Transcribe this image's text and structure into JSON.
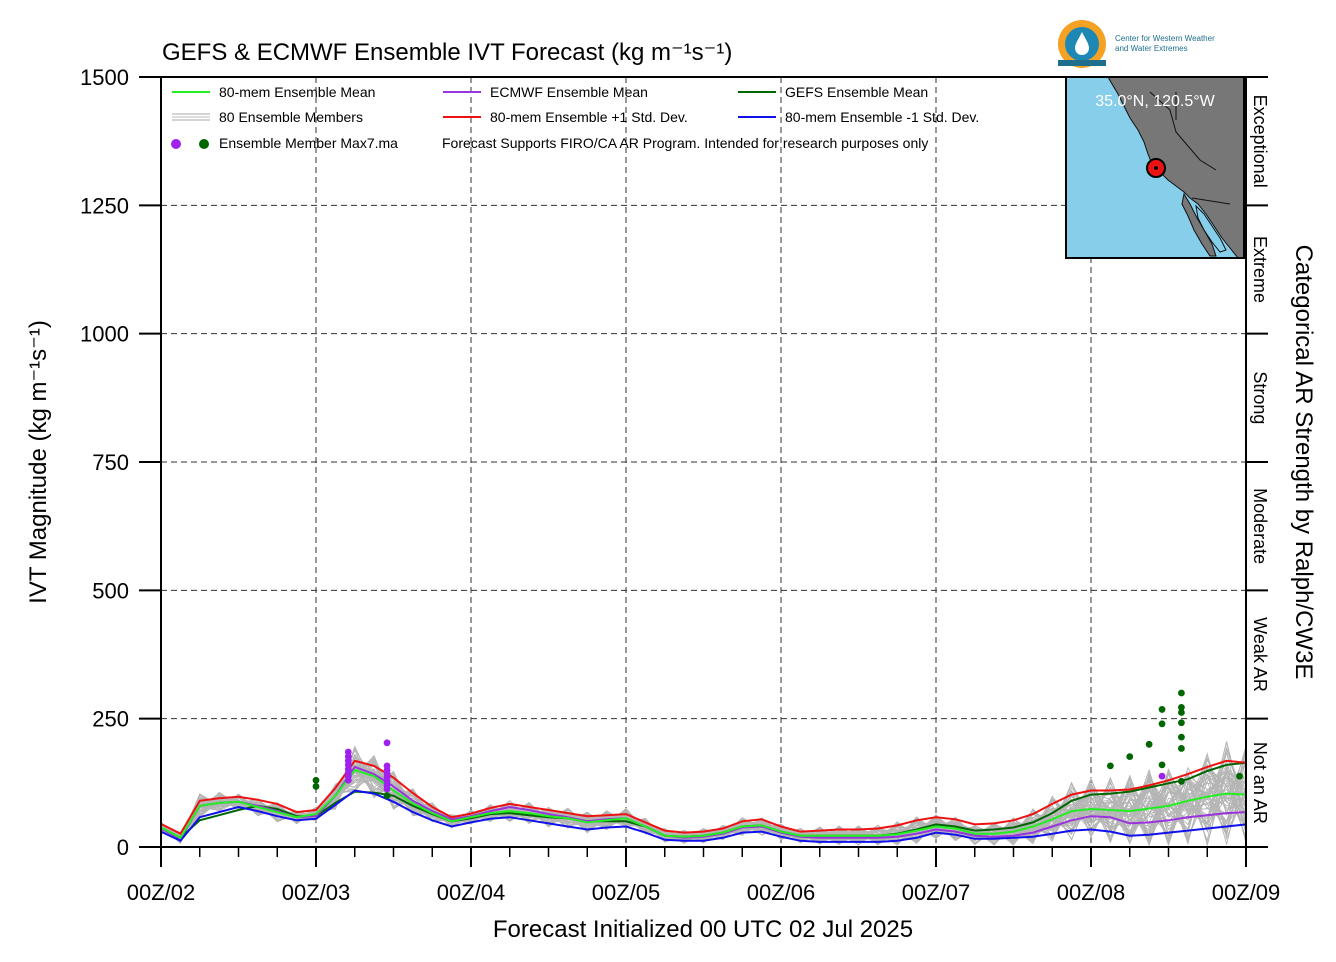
{
  "chart_data": {
    "type": "line",
    "title": "GEFS & ECMWF Ensemble IVT Forecast (kg m⁻¹s⁻¹)",
    "xlabel": "Forecast Initialized 00 UTC 02 Jul 2025",
    "ylabel": "IVT Magnitude (kg m⁻¹s⁻¹)",
    "right_label": "Categorical AR Strength by Ralph/CW3E",
    "ylim": [
      0,
      1500
    ],
    "xlim": [
      0,
      168
    ],
    "y_ticks": [
      0,
      250,
      500,
      750,
      1000,
      1250,
      1500
    ],
    "x_tick_hours": [
      0,
      24,
      48,
      72,
      96,
      120,
      144,
      168
    ],
    "x_tick_labels": [
      "00Z/02",
      "00Z/03",
      "00Z/04",
      "00Z/05",
      "00Z/06",
      "00Z/07",
      "00Z/08",
      "00Z/09"
    ],
    "grid": true,
    "categories": [
      {
        "label": "Not an AR",
        "from": 0,
        "to": 250
      },
      {
        "label": "Weak AR",
        "from": 250,
        "to": 500
      },
      {
        "label": "Moderate",
        "from": 500,
        "to": 750
      },
      {
        "label": "Strong",
        "from": 750,
        "to": 1000
      },
      {
        "label": "Extreme",
        "from": 1000,
        "to": 1250
      },
      {
        "label": "Exceptional",
        "from": 1250,
        "to": 1500
      }
    ],
    "legend": {
      "mean": "80-mem Ensemble Mean",
      "members": "80 Ensemble Members",
      "max": "Ensemble Member Max7.ma",
      "ecmwf": "ECMWF Ensemble Mean",
      "plus": "80-mem Ensemble +1 Std. Dev.",
      "note": "Forecast Supports FIRO/CA AR Program. Intended for research purposes only",
      "gefs": "GEFS Ensemble Mean",
      "minus": "80-mem Ensemble -1 Std. Dev."
    },
    "x": [
      0,
      3,
      6,
      9,
      12,
      15,
      18,
      21,
      24,
      27,
      30,
      33,
      36,
      39,
      42,
      45,
      48,
      51,
      54,
      57,
      60,
      63,
      66,
      69,
      72,
      75,
      78,
      81,
      84,
      87,
      90,
      93,
      96,
      99,
      102,
      105,
      108,
      111,
      114,
      117,
      120,
      123,
      126,
      129,
      132,
      135,
      138,
      141,
      144,
      147,
      150,
      153,
      156,
      159,
      162,
      165,
      168
    ],
    "series": [
      {
        "name": "80-mem Ensemble Mean",
        "color": "#22ee22",
        "values": [
          38,
          18,
          80,
          86,
          88,
          78,
          68,
          58,
          64,
          100,
          150,
          138,
          110,
          85,
          66,
          50,
          58,
          66,
          70,
          66,
          60,
          56,
          48,
          52,
          56,
          40,
          22,
          20,
          22,
          28,
          40,
          42,
          30,
          22,
          22,
          22,
          22,
          22,
          25,
          32,
          40,
          36,
          26,
          26,
          30,
          40,
          54,
          70,
          74,
          72,
          70,
          75,
          80,
          90,
          98,
          104,
          102
        ]
      },
      {
        "name": "80-mem Ensemble +1 Std. Dev.",
        "color": "#ee1111",
        "values": [
          45,
          26,
          90,
          95,
          98,
          92,
          84,
          68,
          72,
          115,
          168,
          158,
          135,
          105,
          78,
          58,
          65,
          76,
          84,
          78,
          72,
          66,
          60,
          62,
          64,
          48,
          32,
          28,
          30,
          36,
          50,
          54,
          40,
          30,
          32,
          34,
          34,
          36,
          42,
          52,
          58,
          54,
          44,
          46,
          52,
          64,
          84,
          102,
          110,
          110,
          112,
          120,
          130,
          142,
          156,
          168,
          164
        ]
      },
      {
        "name": "80-mem Ensemble -1 Std. Dev.",
        "color": "#1111ee",
        "values": [
          30,
          12,
          58,
          68,
          78,
          70,
          60,
          52,
          55,
          82,
          110,
          104,
          88,
          68,
          52,
          40,
          48,
          55,
          58,
          52,
          46,
          40,
          34,
          38,
          40,
          28,
          14,
          12,
          12,
          18,
          28,
          30,
          20,
          12,
          10,
          10,
          10,
          10,
          12,
          18,
          28,
          24,
          16,
          16,
          18,
          20,
          26,
          32,
          34,
          30,
          22,
          24,
          28,
          32,
          36,
          40,
          44
        ]
      },
      {
        "name": "ECMWF Ensemble Mean",
        "color": "#9933dd",
        "values": [
          36,
          16,
          80,
          86,
          88,
          80,
          70,
          58,
          60,
          100,
          156,
          142,
          118,
          90,
          70,
          54,
          60,
          70,
          78,
          72,
          64,
          58,
          50,
          54,
          56,
          40,
          22,
          18,
          20,
          26,
          38,
          40,
          28,
          20,
          18,
          18,
          18,
          18,
          20,
          26,
          34,
          30,
          22,
          20,
          22,
          28,
          40,
          52,
          60,
          58,
          46,
          48,
          52,
          58,
          62,
          66,
          68
        ]
      },
      {
        "name": "GEFS Ensemble Mean",
        "color": "#006600",
        "values": [
          38,
          18,
          52,
          62,
          72,
          80,
          74,
          60,
          60,
          86,
          108,
          106,
          100,
          80,
          64,
          50,
          56,
          64,
          66,
          62,
          58,
          56,
          50,
          50,
          50,
          40,
          22,
          20,
          22,
          28,
          40,
          42,
          30,
          22,
          22,
          22,
          22,
          22,
          26,
          34,
          44,
          40,
          32,
          34,
          38,
          48,
          66,
          90,
          102,
          104,
          108,
          116,
          124,
          132,
          148,
          160,
          164
        ]
      }
    ],
    "max_points": {
      "ecmwf": [
        [
          29,
          185
        ],
        [
          29,
          176
        ],
        [
          29,
          168
        ],
        [
          29,
          160
        ],
        [
          29,
          152
        ],
        [
          29,
          145
        ],
        [
          29,
          138
        ],
        [
          29,
          130
        ],
        [
          35,
          203
        ],
        [
          35,
          158
        ],
        [
          35,
          150
        ],
        [
          35,
          143
        ],
        [
          35,
          136
        ],
        [
          35,
          128
        ],
        [
          35,
          120
        ],
        [
          35,
          113
        ],
        [
          155,
          138
        ]
      ],
      "gefs": [
        [
          24,
          130
        ],
        [
          24,
          118
        ],
        [
          35,
          100
        ],
        [
          147,
          158
        ],
        [
          150,
          176
        ],
        [
          153,
          200
        ],
        [
          155,
          268
        ],
        [
          155,
          240
        ],
        [
          155,
          160
        ],
        [
          158,
          300
        ],
        [
          158,
          272
        ],
        [
          158,
          262
        ],
        [
          158,
          242
        ],
        [
          158,
          214
        ],
        [
          158,
          192
        ],
        [
          158,
          128
        ],
        [
          167,
          138
        ]
      ]
    }
  },
  "map": {
    "location": "35.0°N, 120.5°W",
    "water_color": "#87ceeb",
    "land_color": "#777777"
  },
  "logo": {
    "name_line1": "Center for Western Weather",
    "name_line2": "and Water Extremes"
  }
}
